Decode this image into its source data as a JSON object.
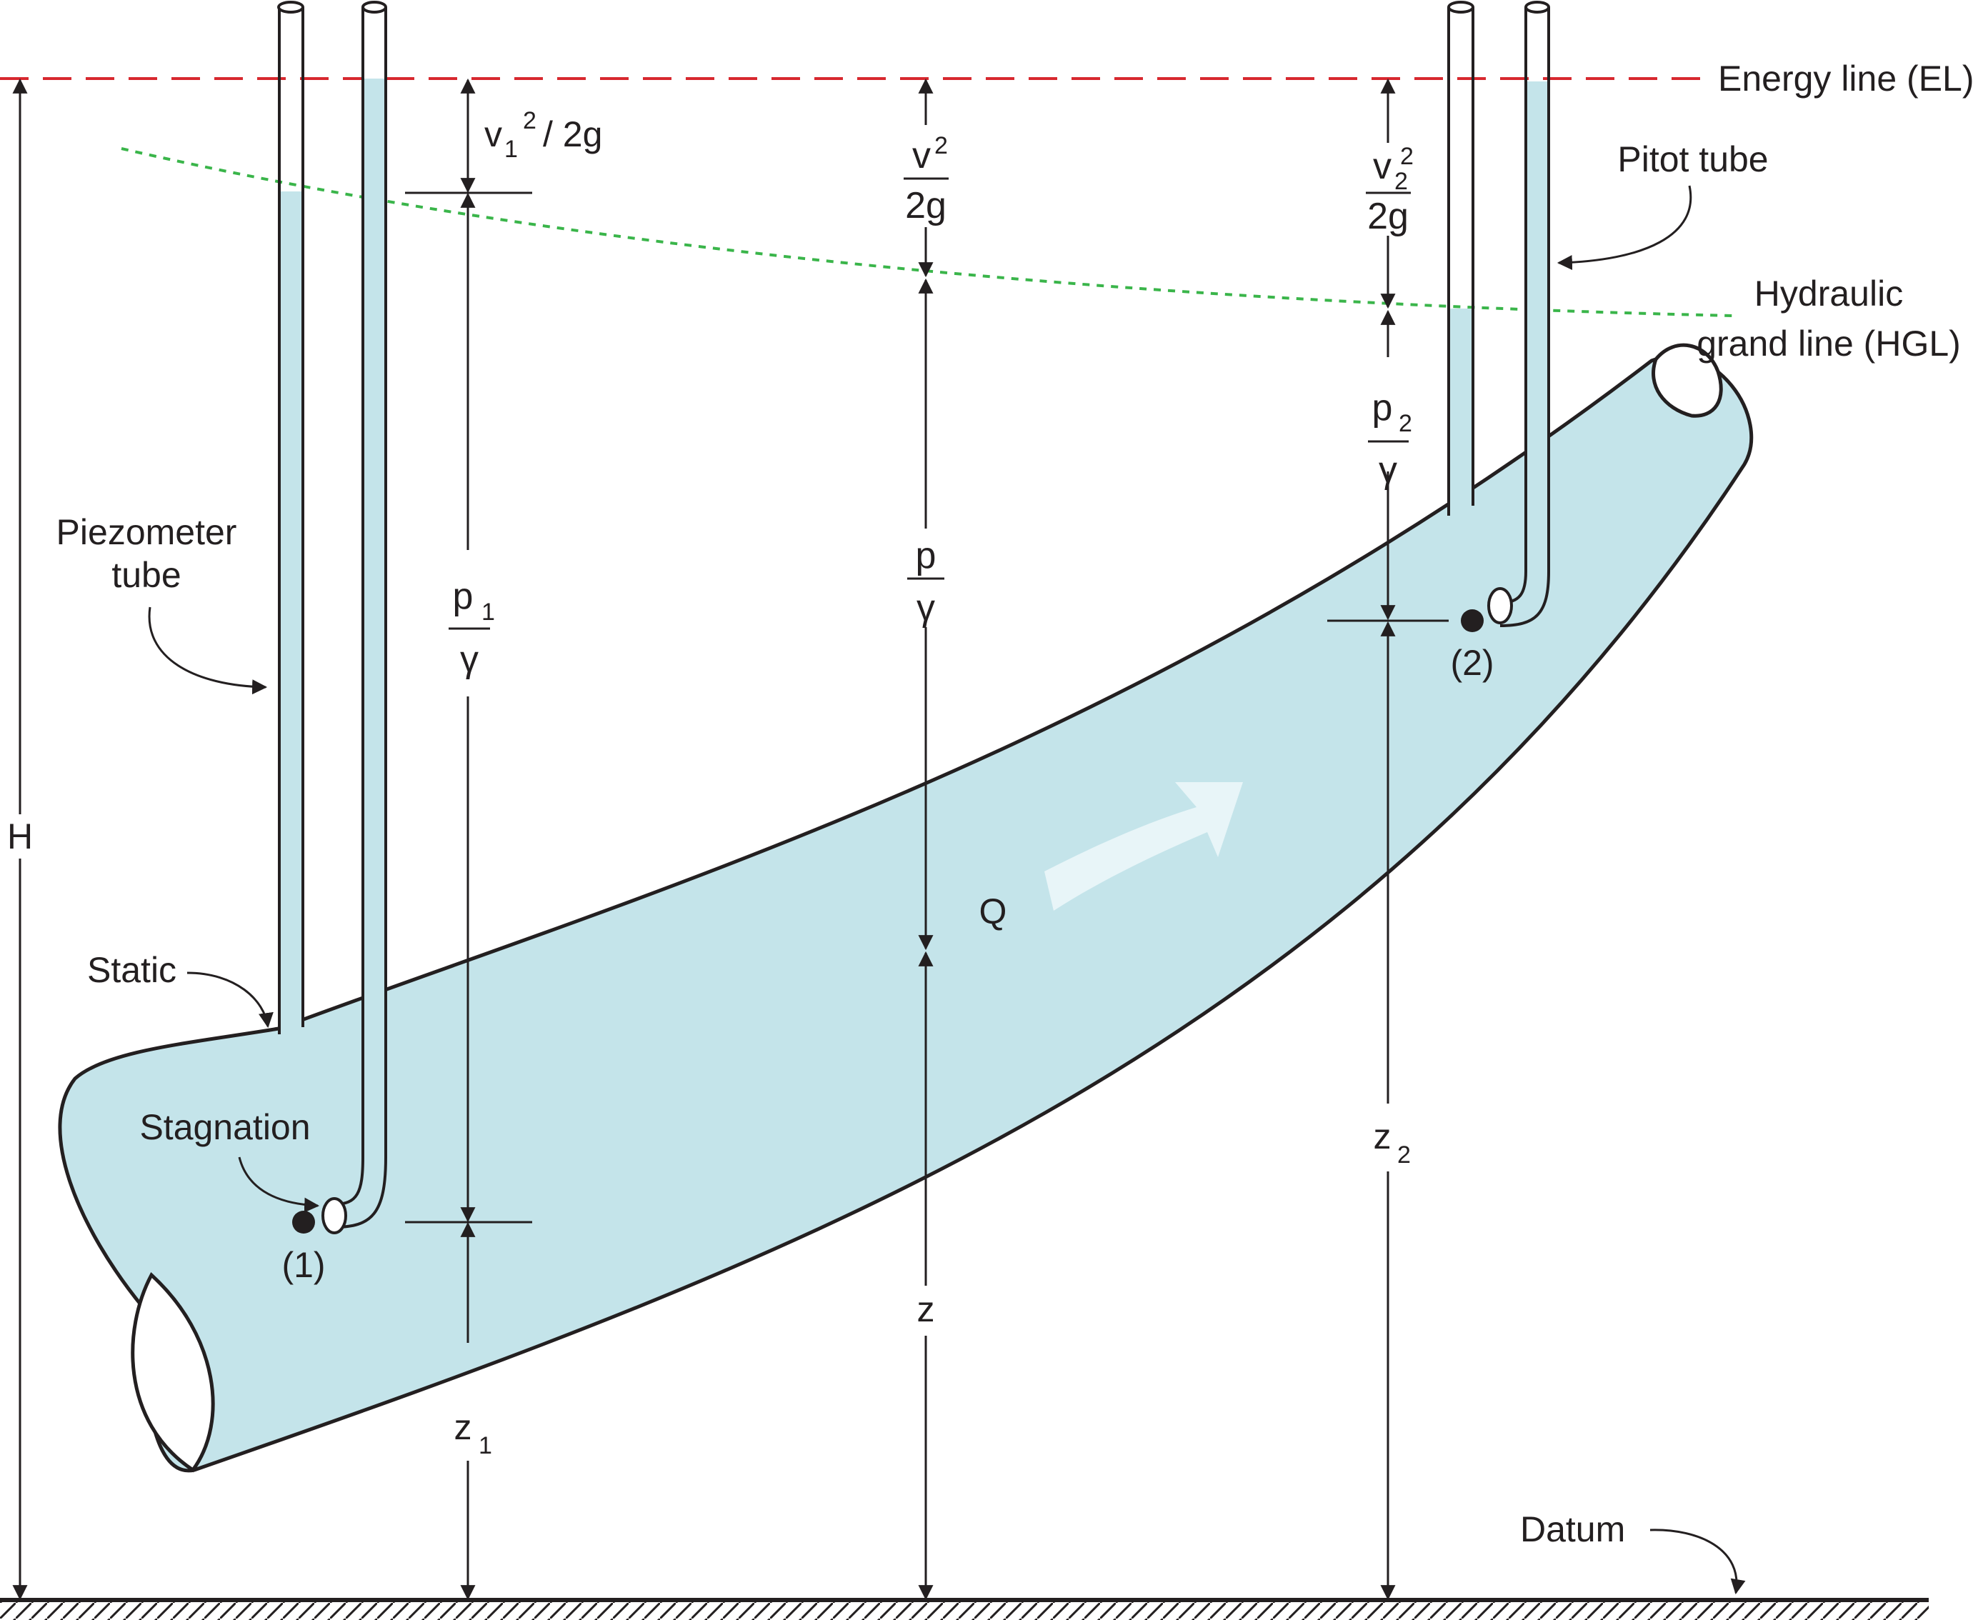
{
  "colors": {
    "water": "#c4e4ea",
    "energy_line": "#d7282f",
    "hgl": "#3ab54a",
    "ink": "#231f20",
    "flow_arrow": "#e8f5f8"
  },
  "labels": {
    "energy_line": "Energy line (EL)",
    "pitot_tube": "Pitot tube",
    "hgl_line1": "Hydraulic",
    "hgl_line2": "grand line (HGL)",
    "piezometer_line1": "Piezometer",
    "piezometer_line2": "tube",
    "static": "Static",
    "stagnation": "Stagnation",
    "datum": "Datum",
    "H": "H",
    "Q": "Q",
    "point1": "(1)",
    "point2": "(2)"
  },
  "terms": {
    "v1_head": {
      "v": "v",
      "sub": "1",
      "sup": "2",
      "rest": "/ 2g"
    },
    "v_head": {
      "num": "v",
      "sup": "2",
      "den": "2g"
    },
    "v2_head": {
      "num": "v",
      "sub": "2",
      "sup": "2",
      "den": "2g"
    },
    "p1_head": {
      "num": "p",
      "sub": "1",
      "den": "γ"
    },
    "p_head": {
      "num": "p",
      "den": "γ"
    },
    "p2_head": {
      "num": "p",
      "sub": "2",
      "den": "γ"
    },
    "z1": {
      "z": "z",
      "sub": "1"
    },
    "z": {
      "z": "z"
    },
    "z2": {
      "z": "z",
      "sub": "2"
    }
  }
}
